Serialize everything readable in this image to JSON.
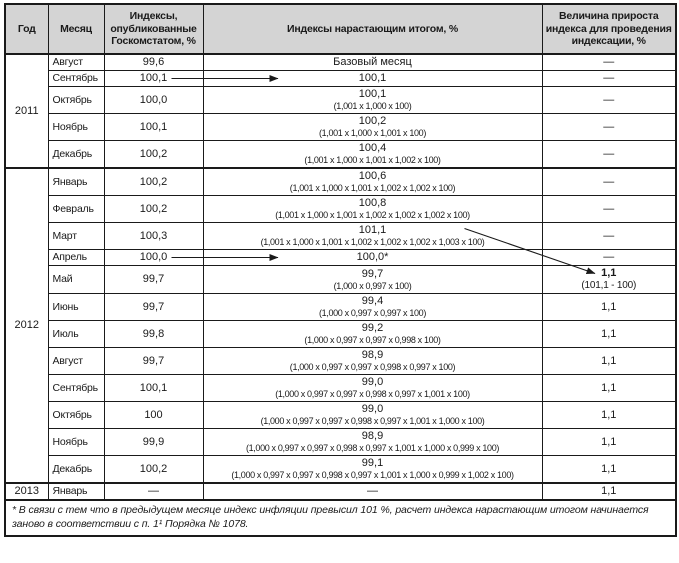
{
  "table": {
    "headers": {
      "year": "Год",
      "month": "Месяц",
      "published": "Индексы,\nопубликованные\nГоскомстатом, %",
      "cumulative": "Индексы нарастающим итогом, %",
      "increase": "Величина прироста\nиндекса для проведения\nиндексации, %"
    },
    "dash": "—",
    "groups": [
      {
        "year": "2011",
        "rows": [
          {
            "month": "Август",
            "published": "99,6",
            "cumulative": "Базовый месяц",
            "increase": "—"
          },
          {
            "month": "Сентябрь",
            "published": "100,1",
            "cumulative": "100,1",
            "increase": "—",
            "arrow_to_cumulative": true
          },
          {
            "month": "Октябрь",
            "published": "100,0",
            "cumulative": "100,1",
            "formula": "(1,001 x 1,000 x 100)",
            "increase": "—"
          },
          {
            "month": "Ноябрь",
            "published": "100,1",
            "cumulative": "100,2",
            "formula": "(1,001 x 1,000 x 1,001 x 100)",
            "increase": "—"
          },
          {
            "month": "Декабрь",
            "published": "100,2",
            "cumulative": "100,4",
            "formula": "(1,001 x 1,000 x 1,001 x 1,002 x 100)",
            "increase": "—"
          }
        ]
      },
      {
        "year": "2012",
        "rows": [
          {
            "month": "Январь",
            "published": "100,2",
            "cumulative": "100,6",
            "formula": "(1,001 x 1,000 x 1,001 x 1,002 x 1,002 x 100)",
            "increase": "—"
          },
          {
            "month": "Февраль",
            "published": "100,2",
            "cumulative": "100,8",
            "formula": "(1,001 x 1,000 x 1,001 x 1,002 x 1,002 x 1,002 x 100)",
            "increase": "—"
          },
          {
            "month": "Март",
            "published": "100,3",
            "cumulative": "101,1",
            "formula": "(1,001 x 1,000 x 1,001 x 1,002 x 1,002 x 1,002 x 1,003 x 100)",
            "increase": "—",
            "callout_source": true
          },
          {
            "month": "Апрель",
            "published": "100,0",
            "cumulative": "100,0*",
            "increase": "—",
            "arrow_to_cumulative": true
          },
          {
            "month": "Май",
            "published": "99,7",
            "cumulative": "99,7",
            "formula": "(1,000 x 0,997 x 100)",
            "increase": "1,1",
            "increase_formula": "(101,1 - 100)",
            "increase_bold": true,
            "callout_target": true
          },
          {
            "month": "Июнь",
            "published": "99,7",
            "cumulative": "99,4",
            "formula": "(1,000 x 0,997 x 0,997 x 100)",
            "increase": "1,1"
          },
          {
            "month": "Июль",
            "published": "99,8",
            "cumulative": "99,2",
            "formula": "(1,000 x 0,997 x 0,997 x 0,998 x 100)",
            "increase": "1,1"
          },
          {
            "month": "Август",
            "published": "99,7",
            "cumulative": "98,9",
            "formula": "(1,000 x 0,997 x 0,997 x 0,998 x 0,997 x 100)",
            "increase": "1,1"
          },
          {
            "month": "Сентябрь",
            "published": "100,1",
            "cumulative": "99,0",
            "formula": "(1,000 x 0,997 x 0,997 x 0,998 x 0,997 x 1,001 x 100)",
            "increase": "1,1"
          },
          {
            "month": "Октябрь",
            "published": "100",
            "cumulative": "99,0",
            "formula": "(1,000 x 0,997 x 0,997 x 0,998 x 0,997 x 1,001 x 1,000 x 100)",
            "increase": "1,1"
          },
          {
            "month": "Ноябрь",
            "published": "99,9",
            "cumulative": "98,9",
            "formula": "(1,000 x 0,997 x 0,997 x 0,998 x 0,997 x 1,001 x 1,000 x 0,999 x 100)",
            "increase": "1,1"
          },
          {
            "month": "Декабрь",
            "published": "100,2",
            "cumulative": "99,1",
            "formula": "(1,000 x 0,997 x 0,997 x 0,998 x 0,997 x 1,001 x 1,000 x 0,999 x 1,002 x 100)",
            "increase": "1,1"
          }
        ]
      },
      {
        "year": "2013",
        "rows": [
          {
            "month": "Январь",
            "published": "—",
            "cumulative": "—",
            "increase": "1,1"
          }
        ]
      }
    ]
  },
  "footnote": {
    "text": "* В связи с тем что в предыдущем месяце индекс инфляции превысил 101 %, расчет индекса нарастающим итогом начинается заново в соответствии с п. 1¹ Порядка № 1078."
  },
  "colors": {
    "header_bg": "#d4d4d4",
    "border": "#1a1a1a",
    "text": "#1a1a1a"
  }
}
